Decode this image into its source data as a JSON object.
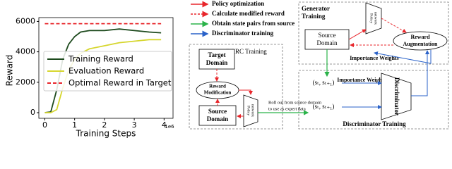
{
  "chart_data": {
    "type": "line",
    "y_label": "Reward",
    "x_label": "Training Steps",
    "x_scale_label": "1e6",
    "x": [
      0,
      0.2,
      0.4,
      0.6,
      0.8,
      1.0,
      1.2,
      1.5,
      2.0,
      2.5,
      3.0,
      3.5,
      3.9
    ],
    "series": [
      {
        "name": "Training Reward",
        "color": "#1d4a1d",
        "line_style": "solid",
        "values": [
          0,
          50,
          1500,
          3500,
          4500,
          5000,
          5300,
          5400,
          5400,
          5500,
          5400,
          5300,
          5250
        ]
      },
      {
        "name": "Evaluation Reward",
        "color": "#d6d62e",
        "line_style": "solid",
        "values": [
          0,
          0,
          200,
          1600,
          2800,
          3500,
          3900,
          4200,
          4400,
          4600,
          4700,
          4800,
          4800
        ]
      },
      {
        "name": "Optimal Reward in Target",
        "color": "#e8262b",
        "line_style": "dashed",
        "values": [
          5850,
          5850,
          5850,
          5850,
          5850,
          5850,
          5850,
          5850,
          5850,
          5850,
          5850,
          5850,
          5850
        ]
      }
    ],
    "xlim": [
      -0.2,
      4.3
    ],
    "xticks": [
      0,
      1,
      2,
      3,
      4
    ],
    "ylim": [
      -370,
      6250
    ],
    "yticks": [
      0,
      2000,
      4000,
      6000
    ]
  },
  "diagram": {
    "legend": [
      "Policy optimization",
      "Calculate modified reward",
      "Obtain state pairs from source",
      "Discriminator training"
    ],
    "darc": {
      "title": "DARC Training",
      "target": [
        "Target",
        "Domain"
      ],
      "reward_mod": [
        "Reward",
        "Modification"
      ],
      "source": [
        "Source",
        "Domain"
      ],
      "policy": [
        "Policy",
        "network"
      ]
    },
    "generator": {
      "title": [
        "Generator",
        "Training"
      ],
      "source": [
        "Source",
        "Domain"
      ],
      "policy": [
        "Policy",
        "network"
      ],
      "reward_aug": [
        "Reward",
        "Augmentation"
      ],
      "weights": "Importance Weights"
    },
    "discriminator": {
      "title": "Discriminator Training",
      "pair_top": "(sₜ, sₜ₊₁)",
      "pair_bottom": "(sₜ, sₜ₊₁)",
      "weights": "Importance Weights",
      "disc": "Discriminator",
      "rollout": [
        "Roll out from source domain",
        "to use as expert data"
      ]
    }
  }
}
